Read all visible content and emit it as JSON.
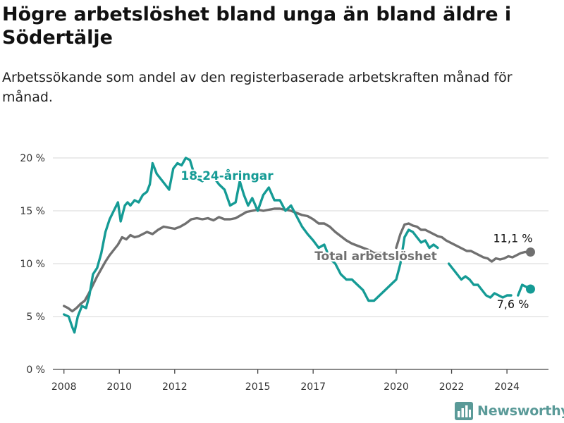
{
  "header": {
    "title": "Högre arbetslöshet bland unga än bland äldre i Södertälje",
    "subtitle": "Arbetssökande som andel av den registerbaserade arbetskraften månad för månad."
  },
  "brand": {
    "name": "Newsworthy",
    "icon": "newsworthy-logo-icon"
  },
  "colors": {
    "youth": "#159b95",
    "total": "#707070",
    "grid": "#d7d7d7",
    "axis": "#444444",
    "brand": "#5a9a98"
  },
  "chart_data": {
    "type": "line",
    "title": "Högre arbetslöshet bland unga än bland äldre i Södertälje",
    "subtitle": "Arbetssökande som andel av den registerbaserade arbetskraften månad för månad.",
    "xlabel": "",
    "ylabel": "",
    "xlim": [
      2007.6,
      2025.5
    ],
    "ylim": [
      0,
      20
    ],
    "grid": true,
    "x_ticks": [
      2008,
      2010,
      2012,
      2015,
      2017,
      2020,
      2022,
      2024
    ],
    "y_ticks": [
      {
        "value": 0,
        "label": "0 %"
      },
      {
        "value": 5,
        "label": "5 %"
      },
      {
        "value": 10,
        "label": "10 %"
      },
      {
        "value": 15,
        "label": "15 %"
      },
      {
        "value": 20,
        "label": "20 %"
      }
    ],
    "series": [
      {
        "name": "18-24-åringar",
        "color": "#159b95",
        "end_label": "7,6 %",
        "segments": [
          {
            "x": [
              2008.0,
              2008.17,
              2008.3,
              2008.38,
              2008.5,
              2008.65,
              2008.8,
              2008.92,
              2009.05,
              2009.2,
              2009.35,
              2009.5,
              2009.65,
              2009.8,
              2009.95,
              2010.05,
              2010.2,
              2010.3,
              2010.4,
              2010.55,
              2010.7,
              2010.85,
              2011.0,
              2011.1,
              2011.2,
              2011.35,
              2011.5,
              2011.65,
              2011.8,
              2011.95,
              2012.1,
              2012.25,
              2012.4,
              2012.55,
              2012.7,
              2012.85,
              2013.0,
              2013.2,
              2013.4,
              2013.6,
              2013.8,
              2014.0,
              2014.2,
              2014.35,
              2014.5,
              2014.65,
              2014.8,
              2015.0,
              2015.2,
              2015.4,
              2015.6,
              2015.8,
              2016.0,
              2016.2,
              2016.4,
              2016.6,
              2016.8,
              2017.0,
              2017.2,
              2017.4,
              2017.6,
              2017.8,
              2018.0,
              2018.2,
              2018.4,
              2018.6,
              2018.8,
              2019.0,
              2019.2,
              2019.4,
              2019.6,
              2019.8,
              2020.0,
              2020.15,
              2020.3,
              2020.45,
              2020.6,
              2020.75,
              2020.9,
              2021.05,
              2021.2,
              2021.35,
              2021.5
            ],
            "y": [
              5.2,
              5.0,
              4.0,
              3.5,
              5.0,
              6.0,
              5.8,
              7.0,
              9.0,
              9.6,
              11.0,
              13.0,
              14.2,
              15.0,
              15.8,
              14.0,
              15.5,
              15.8,
              15.5,
              16.0,
              15.8,
              16.5,
              16.8,
              17.5,
              19.5,
              18.5,
              18.0,
              17.5,
              17.0,
              19.0,
              19.5,
              19.3,
              20.0,
              19.8,
              18.5,
              18.0,
              17.8,
              18.5,
              18.2,
              17.5,
              17.0,
              15.5,
              15.8,
              17.8,
              16.5,
              15.5,
              16.2,
              15.0,
              16.5,
              17.2,
              16.0,
              16.0,
              15.0,
              15.5,
              14.5,
              13.5,
              12.8,
              12.2,
              11.5,
              11.8,
              10.5,
              10.0,
              9.0,
              8.5,
              8.5,
              8.0,
              7.5,
              6.5,
              6.5,
              7.0,
              7.5,
              8.0,
              8.5,
              10.0,
              12.5,
              13.2,
              13.0,
              12.5,
              12.0,
              12.2,
              11.5,
              11.8,
              11.5
            ]
          },
          {
            "x": [
              2021.9,
              2022.05,
              2022.2,
              2022.35,
              2022.5,
              2022.65,
              2022.8,
              2022.95,
              2023.1,
              2023.25,
              2023.4,
              2023.55,
              2023.7,
              2023.85,
              2024.0,
              2024.15
            ],
            "y": [
              10.0,
              9.5,
              9.0,
              8.5,
              8.8,
              8.5,
              8.0,
              8.0,
              7.5,
              7.0,
              6.8,
              7.2,
              7.0,
              6.8,
              7.0,
              7.0
            ]
          },
          {
            "x": [
              2024.4,
              2024.55,
              2024.7,
              2024.85
            ],
            "y": [
              7.0,
              8.0,
              7.8,
              7.6
            ]
          }
        ]
      },
      {
        "name": "Total arbetslöshet",
        "color": "#707070",
        "end_label": "11,1 %",
        "segments": [
          {
            "x": [
              2008.0,
              2008.15,
              2008.3,
              2008.45,
              2008.6,
              2008.75,
              2008.9,
              2009.05,
              2009.2,
              2009.35,
              2009.5,
              2009.65,
              2009.8,
              2009.95,
              2010.1,
              2010.25,
              2010.4,
              2010.55,
              2010.7,
              2010.85,
              2011.0,
              2011.2,
              2011.4,
              2011.6,
              2011.8,
              2012.0,
              2012.2,
              2012.4,
              2012.6,
              2012.8,
              2013.0,
              2013.2,
              2013.4,
              2013.6,
              2013.8,
              2014.0,
              2014.2,
              2014.4,
              2014.6,
              2014.8,
              2015.0,
              2015.2,
              2015.4,
              2015.6,
              2015.8,
              2016.0,
              2016.2,
              2016.4,
              2016.6,
              2016.8,
              2017.0,
              2017.2,
              2017.4,
              2017.6,
              2017.8,
              2018.0,
              2018.2,
              2018.4,
              2018.6,
              2018.8,
              2019.0,
              2019.2,
              2019.4,
              2019.6
            ],
            "y": [
              6.0,
              5.8,
              5.5,
              5.8,
              6.2,
              6.5,
              7.2,
              8.0,
              8.8,
              9.5,
              10.2,
              10.8,
              11.3,
              11.8,
              12.5,
              12.3,
              12.7,
              12.5,
              12.6,
              12.8,
              13.0,
              12.8,
              13.2,
              13.5,
              13.4,
              13.3,
              13.5,
              13.8,
              14.2,
              14.3,
              14.2,
              14.3,
              14.1,
              14.4,
              14.2,
              14.2,
              14.3,
              14.6,
              14.9,
              15.0,
              15.1,
              15.0,
              15.1,
              15.2,
              15.2,
              15.1,
              15.0,
              14.8,
              14.6,
              14.5,
              14.2,
              13.8,
              13.8,
              13.5,
              13.0,
              12.6,
              12.2,
              11.9,
              11.7,
              11.5,
              11.3,
              11.0,
              11.0,
              11.0
            ]
          },
          {
            "x": [
              2020.0,
              2020.15,
              2020.3,
              2020.45,
              2020.6,
              2020.75,
              2020.9,
              2021.05,
              2021.2,
              2021.35,
              2021.5,
              2021.65,
              2021.8,
              2021.95,
              2022.1,
              2022.25,
              2022.4,
              2022.55,
              2022.7,
              2022.85,
              2023.0,
              2023.15,
              2023.3,
              2023.45,
              2023.6,
              2023.75,
              2023.9,
              2024.05,
              2024.2,
              2024.35,
              2024.5,
              2024.65,
              2024.85
            ],
            "y": [
              11.5,
              12.8,
              13.7,
              13.8,
              13.6,
              13.5,
              13.2,
              13.2,
              13.0,
              12.8,
              12.6,
              12.5,
              12.2,
              12.0,
              11.8,
              11.6,
              11.4,
              11.2,
              11.2,
              11.0,
              10.8,
              10.6,
              10.5,
              10.2,
              10.5,
              10.4,
              10.5,
              10.7,
              10.6,
              10.8,
              11.0,
              11.1,
              11.1
            ]
          }
        ]
      }
    ]
  }
}
